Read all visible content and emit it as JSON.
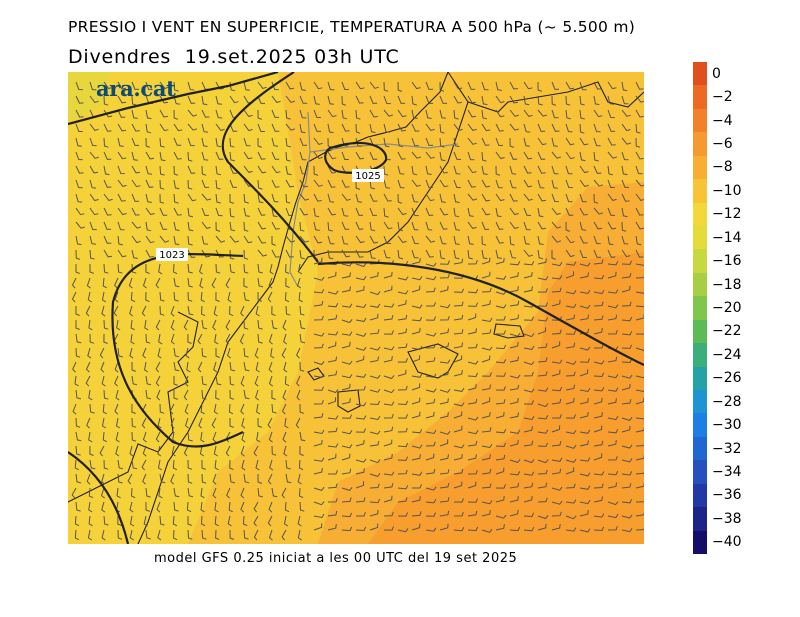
{
  "header": {
    "title": "PRESSIO I VENT EN SUPERFICIE, TEMPERATURA A 500 hPa (~ 5.500 m)",
    "subtitle": "Divendres  19.set.2025 03h UTC"
  },
  "logo": {
    "text": "ara.cat"
  },
  "footer": {
    "text": "model GFS 0.25 iniciat a les 00 UTC del 19 set 2025"
  },
  "isobars": [
    {
      "label": "1023"
    },
    {
      "label": "1025"
    }
  ],
  "colorbar": {
    "labels": [
      "0",
      "−2",
      "−4",
      "−6",
      "−8",
      "−10",
      "−12",
      "−14",
      "−16",
      "−18",
      "−20",
      "−22",
      "−24",
      "−26",
      "−28",
      "−30",
      "−32",
      "−34",
      "−36",
      "−38",
      "−40"
    ],
    "colors": [
      "#e0501e",
      "#ec6a24",
      "#f3802a",
      "#f59a30",
      "#f7ae32",
      "#f7c436",
      "#f4d83a",
      "#e4dc3c",
      "#c7d840",
      "#a6cf44",
      "#80c64a",
      "#5cbb56",
      "#3cae7c",
      "#24a2a8",
      "#1e94d2",
      "#1e7ee6",
      "#2266d4",
      "#2450c0",
      "#2238a6",
      "#1c2488",
      "#140e68"
    ]
  }
}
